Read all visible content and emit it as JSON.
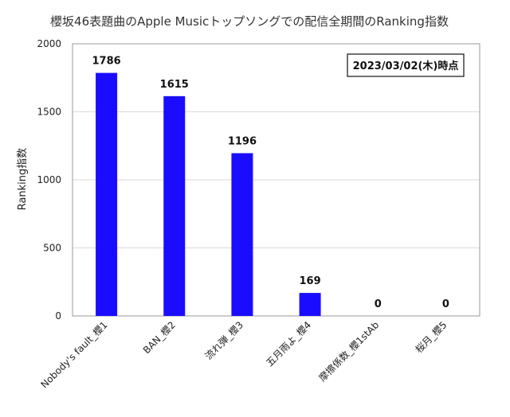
{
  "chart_data": {
    "type": "bar",
    "title": "櫻坂46表題曲のApple Musicトップソングでの配信全期間のRanking指数",
    "ylabel": "Ranking指数",
    "xlabel": "",
    "categories": [
      "Nobody's fault_櫻1",
      "BAN_櫻2",
      "流れ弾_櫻3",
      "五月雨よ_櫻4",
      "摩擦係数_櫻1stAb",
      "桜月_櫻5"
    ],
    "values": [
      1786,
      1615,
      1196,
      169,
      0,
      0
    ],
    "data_labels": [
      "1786",
      "1615",
      "1196",
      "169",
      "0",
      "0"
    ],
    "ylim": [
      0,
      2000
    ],
    "yticks": [
      0,
      500,
      1000,
      1500,
      2000
    ],
    "grid": true,
    "annotation": "2023/03/02(木)時点",
    "bar_color": "#1a0dff"
  }
}
